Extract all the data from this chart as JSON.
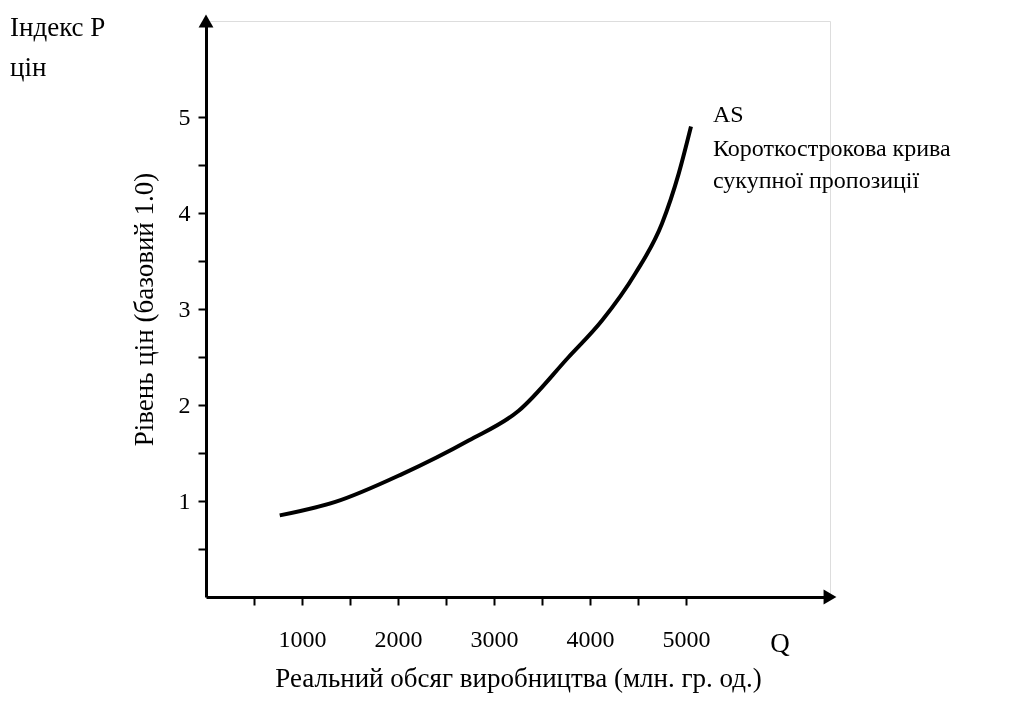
{
  "chart_data": {
    "type": "line",
    "xlabel": "Реальний обсяг виробництва (млн. гр. од.)",
    "ylabel": "Рівень цін (базовий 1.0)",
    "x": [
      768,
      1347,
      2042,
      2736,
      3257,
      3778,
      4125,
      4472,
      4750,
      4924,
      5052
    ],
    "series": [
      {
        "name": "AS",
        "color": "#000000",
        "values": [
          0.85,
          0.99,
          1.28,
          1.63,
          1.94,
          2.5,
          2.88,
          3.37,
          3.89,
          4.41,
          4.9
        ]
      }
    ],
    "xlim": [
      0,
      6500
    ],
    "ylim": [
      0,
      6
    ],
    "xticks": [
      {
        "value": 500,
        "label": null
      },
      1000,
      {
        "value": 1500,
        "label": null
      },
      2000,
      {
        "value": 2500,
        "label": null
      },
      3000,
      {
        "value": 3500,
        "label": null
      },
      4000,
      {
        "value": 4500,
        "label": null
      },
      5000
    ],
    "yticks": [
      {
        "value": 0.5,
        "label": null
      },
      1,
      {
        "value": 1.5,
        "label": null
      },
      2,
      {
        "value": 2.5,
        "label": null
      },
      3,
      {
        "value": 3.5,
        "label": null
      },
      4,
      {
        "value": 4.5,
        "label": null
      },
      5
    ],
    "annotations": [
      {
        "text": "Короткострокова крива\nсукупної пропозиції",
        "x": 5052,
        "y": 4.9
      },
      "Індекс P\nцін",
      "Q"
    ],
    "grid": false,
    "marker": "none",
    "line_style": "solid"
  }
}
